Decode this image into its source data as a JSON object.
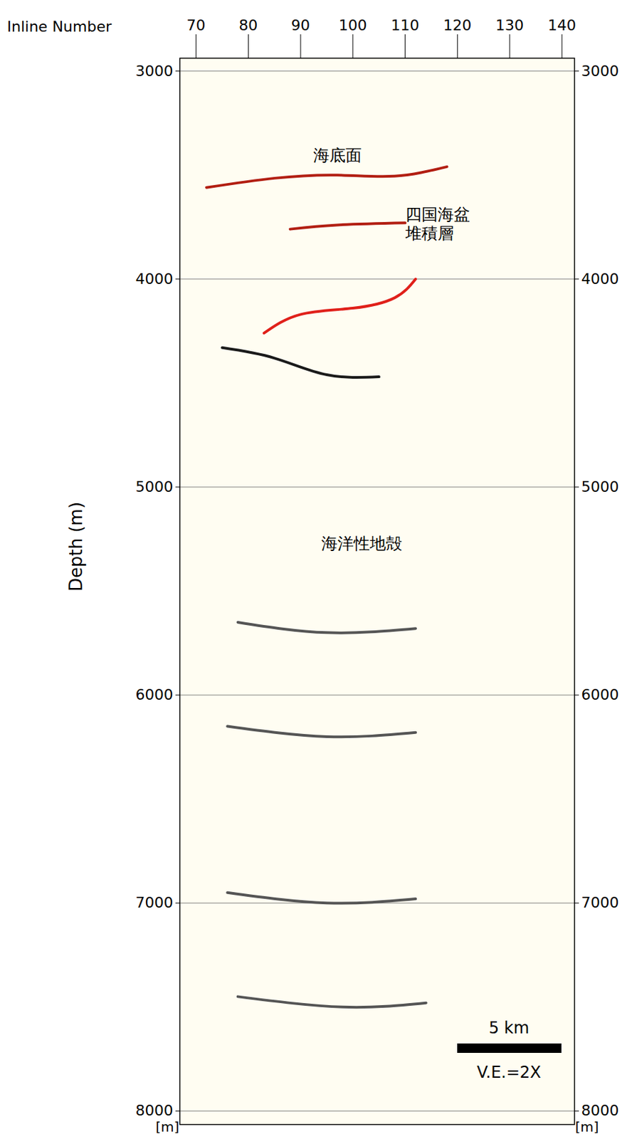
{
  "chart_data": {
    "type": "line",
    "x_label": "Inline Number",
    "y_label": "Depth (m)",
    "y_unit_label": "[m]",
    "xlim": [
      66.9,
      142.4
    ],
    "xticks": [
      70,
      80,
      90,
      100,
      110,
      120,
      130,
      140
    ],
    "ylim": [
      2938,
      8065
    ],
    "yticks": [
      3000,
      4000,
      5000,
      6000,
      7000,
      8000
    ],
    "grid": true,
    "series": [
      {
        "color": "#b21e12",
        "x": [
          72,
          85,
          97,
          108,
          118
        ],
        "values": [
          3560,
          3515,
          3500,
          3505,
          3460
        ]
      },
      {
        "color": "#b21e12",
        "x": [
          88,
          97,
          110
        ],
        "values": [
          3760,
          3740,
          3730
        ]
      },
      {
        "color": "#e0201a",
        "x": [
          83,
          90,
          100,
          108,
          112
        ],
        "values": [
          4260,
          4170,
          4140,
          4090,
          4000
        ]
      },
      {
        "color": "#1a1a1a",
        "x": [
          75,
          85,
          95,
          105
        ],
        "values": [
          4330,
          4380,
          4460,
          4470
        ]
      },
      {
        "color": "#555555",
        "x": [
          78,
          95,
          112
        ],
        "values": [
          5650,
          5700,
          5680
        ]
      },
      {
        "color": "#555555",
        "x": [
          76,
          95,
          112
        ],
        "values": [
          6150,
          6200,
          6180
        ]
      },
      {
        "color": "#555555",
        "x": [
          76,
          95,
          112
        ],
        "values": [
          6950,
          7000,
          6980
        ]
      },
      {
        "color": "#555555",
        "x": [
          78,
          98,
          114
        ],
        "values": [
          7450,
          7500,
          7480
        ]
      }
    ],
    "annotations": [
      {
        "text": [
          "海底面"
        ],
        "x": 97,
        "y": 3404
      },
      {
        "text": [
          "四国海盆",
          "堆積層"
        ],
        "x": 110,
        "y": 3733
      },
      {
        "text": [
          "海洋性地殻"
        ],
        "x": 101.7,
        "y": 5268
      }
    ],
    "scale_bar_label": "5 km",
    "ve_label": "V.E.=2X"
  }
}
